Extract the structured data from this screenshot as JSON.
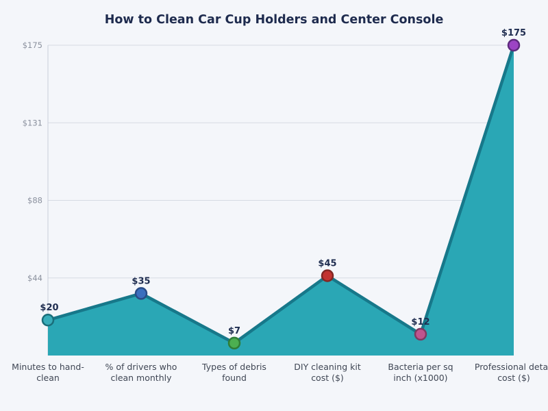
{
  "chart_data": {
    "type": "area",
    "title": "How to Clean Car Cup Holders and Center Console",
    "categories": [
      "Minutes to hand-clean",
      "% of drivers who clean monthly",
      "Types of debris found",
      "DIY cleaning kit cost ($)",
      "Bacteria per sq inch (x1000)",
      "Professional detail cost ($)"
    ],
    "category_lines": [
      [
        "Minutes to hand-",
        "clean"
      ],
      [
        "% of drivers who",
        "clean monthly"
      ],
      [
        "Types of debris",
        "found"
      ],
      [
        "DIY cleaning kit",
        "cost ($)"
      ],
      [
        "Bacteria per sq",
        "inch (x1000)"
      ],
      [
        "Professional detail",
        "cost ($)"
      ]
    ],
    "values": [
      20,
      35,
      7,
      45,
      12,
      175
    ],
    "value_labels": [
      "$20",
      "$35",
      "$7",
      "$45",
      "$12",
      "$175"
    ],
    "yticks": [
      {
        "value": 43.75,
        "label": "$44"
      },
      {
        "value": 87.5,
        "label": "$88"
      },
      {
        "value": 131.25,
        "label": "$131"
      },
      {
        "value": 175,
        "label": "$175"
      }
    ],
    "ylim": [
      0,
      175
    ],
    "xlabel": "",
    "ylabel": "",
    "grid": true,
    "legend": false,
    "colors": {
      "background": "#F4F6FA",
      "area_fill": "#2AA7B5",
      "line": "#17788A",
      "grid": "#D6DAE3",
      "spine": "#C9CED9",
      "title": "#1E2B4E",
      "tick_label": "#8B919E",
      "category_label": "#3F4654",
      "value_label": "#1F2D50"
    },
    "markers": [
      {
        "name": "minutes-to-hand-clean",
        "fill": "#38ADBA",
        "stroke": "#1A6E7A"
      },
      {
        "name": "drivers-who-clean-monthly",
        "fill": "#3B6FBE",
        "stroke": "#2A4C86"
      },
      {
        "name": "types-of-debris-found",
        "fill": "#4CAF50",
        "stroke": "#2F7D36"
      },
      {
        "name": "diy-cleaning-kit-cost",
        "fill": "#C23431",
        "stroke": "#822724"
      },
      {
        "name": "bacteria-per-sq-inch",
        "fill": "#C0548E",
        "stroke": "#7E3961"
      },
      {
        "name": "professional-detail-cost",
        "fill": "#9C44C4",
        "stroke": "#5E2B7E"
      }
    ]
  }
}
